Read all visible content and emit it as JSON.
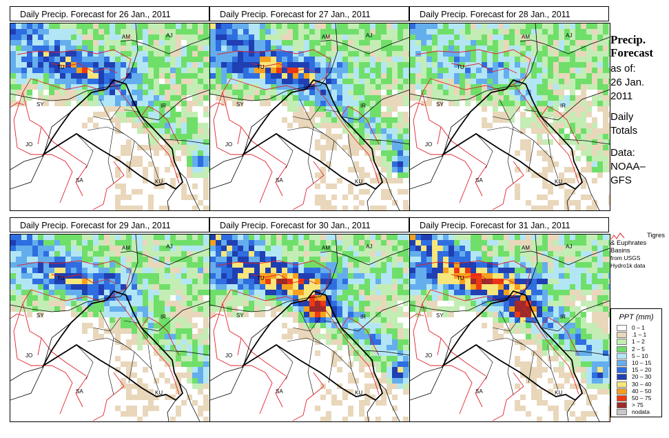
{
  "panels": [
    {
      "title": "Daily Precip. Forecast for  26 Jan., 2011",
      "seed": 11,
      "intensity": 0.85
    },
    {
      "title": "Daily Precip. Forecast for  27 Jan., 2011",
      "seed": 23,
      "intensity": 1.0
    },
    {
      "title": "Daily Precip. Forecast for  28 Jan., 2011",
      "seed": 37,
      "intensity": 0.45
    },
    {
      "title": "Daily Precip. Forecast for  29 Jan., 2011",
      "seed": 41,
      "intensity": 0.8
    },
    {
      "title": "Daily Precip. Forecast for  30 Jan., 2011",
      "seed": 53,
      "intensity": 1.15
    },
    {
      "title": "Daily Precip. Forecast for  31 Jan., 2011",
      "seed": 67,
      "intensity": 1.2
    }
  ],
  "map_labels": [
    "AM",
    "AJ",
    "TU",
    "SY",
    "IR",
    "JO",
    "SA",
    "KU"
  ],
  "side": {
    "heading_1": "Precip.",
    "heading_2": "Forecast",
    "as_of": "as of:",
    "date_1": "26 Jan.",
    "date_2": "2011",
    "daily_1": "Daily",
    "daily_2": "Totals",
    "data_1": "Data:",
    "data_2": "NOAA–",
    "data_3": "GFS"
  },
  "basin_legend": {
    "line_1": "Tigres",
    "line_2": "& Euphrates",
    "line_3": "Basins",
    "line_4": "from USGS",
    "line_5": "Hydro1k data",
    "color": "#e0202a"
  },
  "ppt_legend": {
    "title": "PPT (mm)",
    "classes": [
      {
        "label": "0 – 1",
        "color": "#ffffff"
      },
      {
        "label": ".1 – 1",
        "color": "#e9d7bb"
      },
      {
        "label": "1 – 2",
        "color": "#c3edb4"
      },
      {
        "label": "2 – 5",
        "color": "#6fdf6a"
      },
      {
        "label": "5 – 10",
        "color": "#b3e6f5"
      },
      {
        "label": "10 – 15",
        "color": "#64aeed"
      },
      {
        "label": "15 – 20",
        "color": "#2f6ee0"
      },
      {
        "label": "20 – 30",
        "color": "#1f3fb3"
      },
      {
        "label": "30 – 40",
        "color": "#f7e67a"
      },
      {
        "label": "40 – 50",
        "color": "#f6a11e"
      },
      {
        "label": "50 – 75",
        "color": "#ee3a12"
      },
      {
        "label": "> 75",
        "color": "#9c2a2a"
      },
      {
        "label": "nodata",
        "color": "#c8c8c8"
      }
    ]
  }
}
